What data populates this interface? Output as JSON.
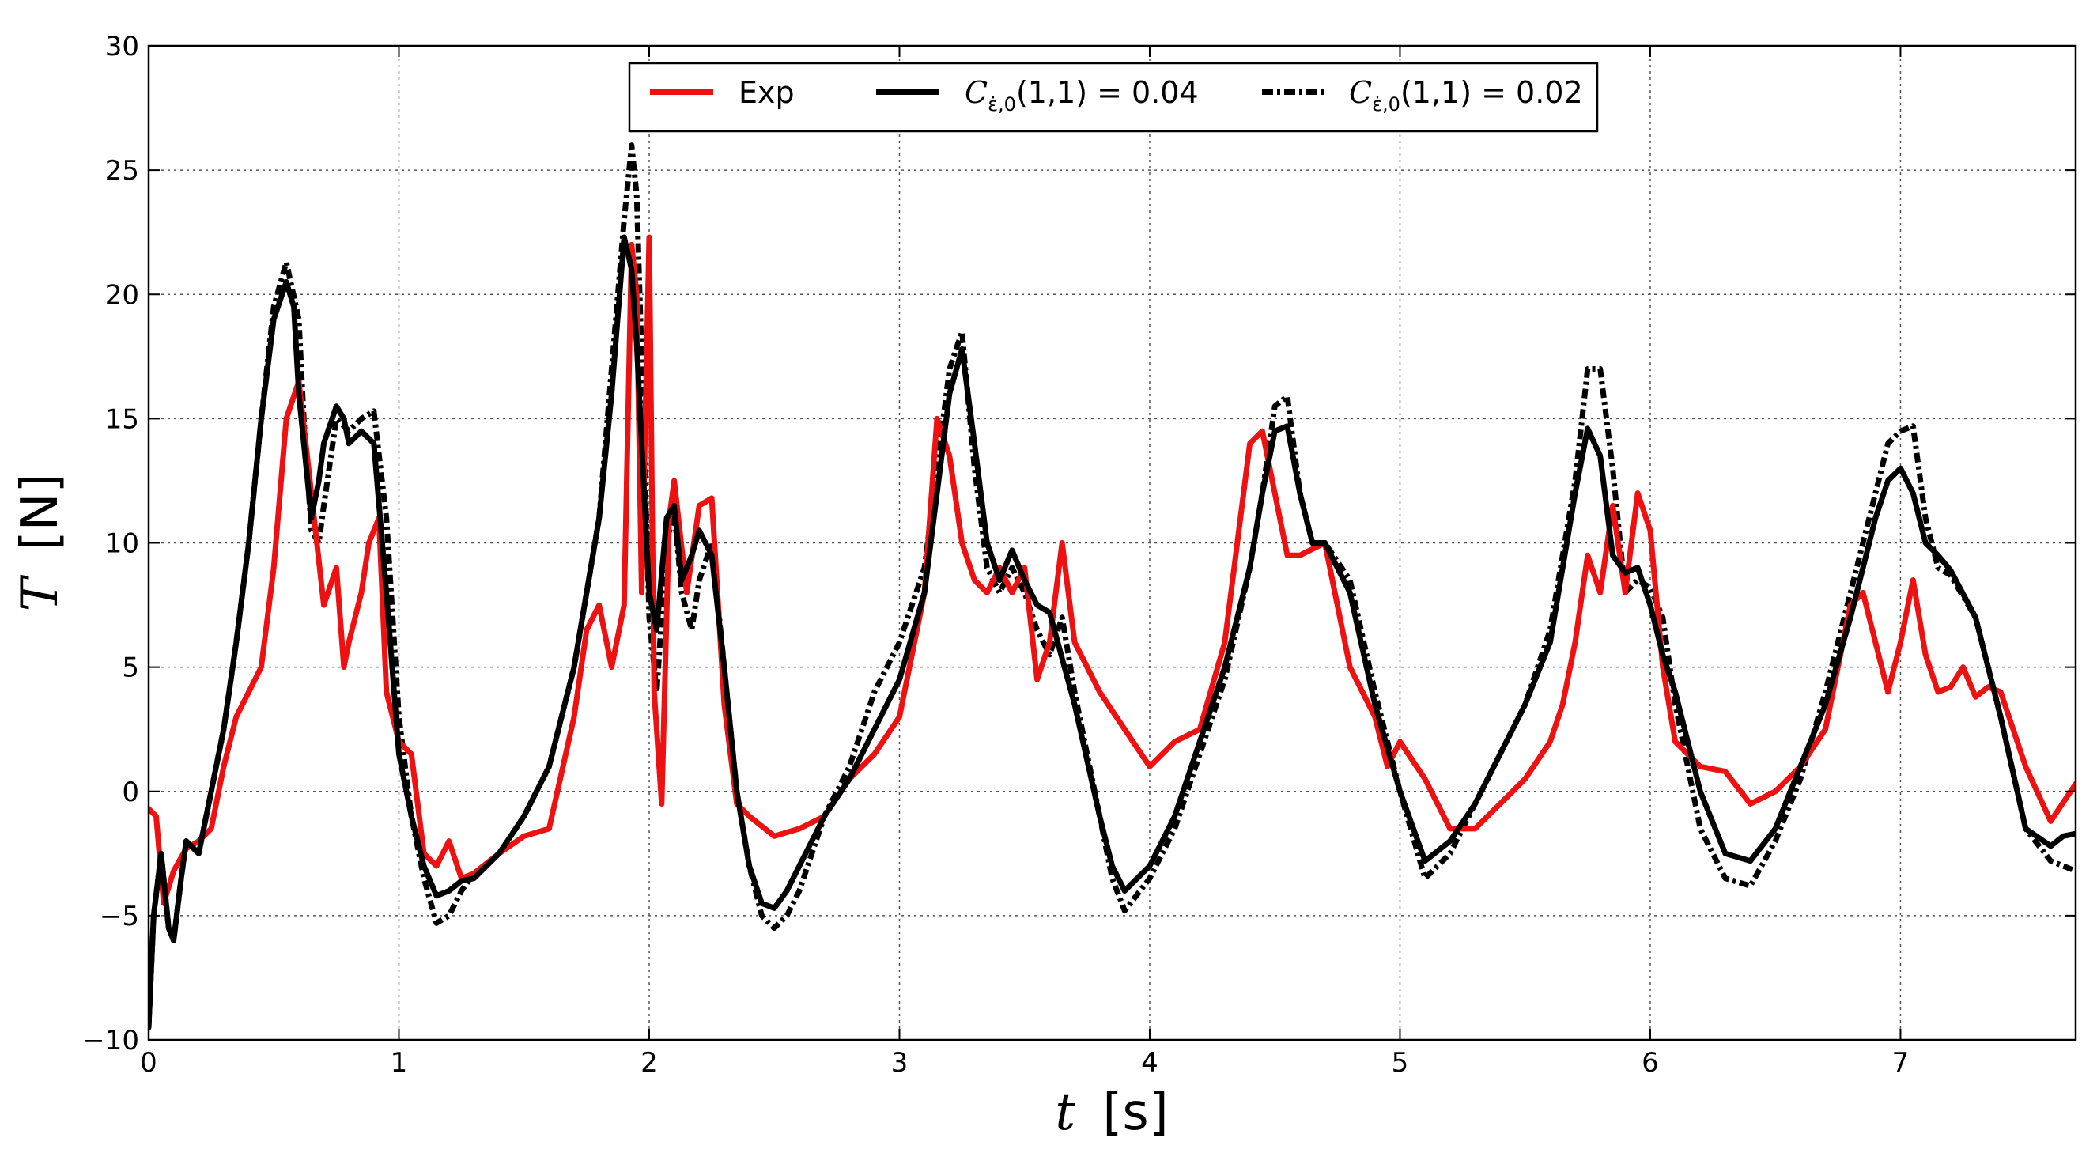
{
  "chart_data": {
    "type": "line",
    "xlabel_var": "t",
    "xlabel_unit": "[s]",
    "ylabel_var": "T",
    "ylabel_unit": "[N]",
    "xlim": [
      0,
      7.7
    ],
    "ylim": [
      -10,
      30
    ],
    "x_ticks": [
      0,
      1,
      2,
      3,
      4,
      5,
      6,
      7
    ],
    "y_ticks": [
      -10,
      -5,
      0,
      5,
      10,
      15,
      20,
      25,
      30
    ],
    "x_tick_labels": [
      "0",
      "1",
      "2",
      "3",
      "4",
      "5",
      "6",
      "7"
    ],
    "y_tick_labels": [
      "−10",
      "−5",
      "0",
      "5",
      "10",
      "15",
      "20",
      "25",
      "30"
    ],
    "grid": true,
    "legend_position": "top-center",
    "series": [
      {
        "name": "Exp",
        "color": "#ee1111",
        "style": "solid",
        "x": [
          0,
          0.03,
          0.06,
          0.1,
          0.15,
          0.2,
          0.25,
          0.3,
          0.35,
          0.4,
          0.45,
          0.5,
          0.55,
          0.6,
          0.65,
          0.7,
          0.75,
          0.78,
          0.8,
          0.85,
          0.88,
          0.92,
          0.95,
          1.0,
          1.05,
          1.1,
          1.15,
          1.2,
          1.25,
          1.3,
          1.4,
          1.5,
          1.6,
          1.7,
          1.75,
          1.8,
          1.85,
          1.9,
          1.93,
          1.95,
          1.97,
          2.0,
          2.02,
          2.05,
          2.08,
          2.1,
          2.15,
          2.2,
          2.25,
          2.3,
          2.35,
          2.4,
          2.5,
          2.6,
          2.7,
          2.8,
          2.9,
          3.0,
          3.1,
          3.15,
          3.2,
          3.25,
          3.3,
          3.35,
          3.4,
          3.45,
          3.5,
          3.55,
          3.6,
          3.65,
          3.7,
          3.8,
          3.9,
          4.0,
          4.1,
          4.2,
          4.3,
          4.4,
          4.45,
          4.5,
          4.55,
          4.6,
          4.7,
          4.75,
          4.8,
          4.85,
          4.9,
          4.95,
          5.0,
          5.1,
          5.2,
          5.3,
          5.4,
          5.5,
          5.6,
          5.65,
          5.7,
          5.75,
          5.8,
          5.85,
          5.9,
          5.95,
          6.0,
          6.05,
          6.1,
          6.2,
          6.3,
          6.4,
          6.5,
          6.6,
          6.7,
          6.8,
          6.85,
          6.9,
          6.95,
          7.0,
          7.05,
          7.1,
          7.15,
          7.2,
          7.25,
          7.3,
          7.35,
          7.4,
          7.5,
          7.6,
          7.7
        ],
        "y": [
          -0.7,
          -1.0,
          -4.5,
          -3.2,
          -2.3,
          -2.0,
          -1.5,
          1.0,
          3.0,
          4.0,
          5.0,
          9.0,
          15.0,
          16.5,
          12.0,
          7.5,
          9.0,
          5.0,
          6.0,
          8.0,
          10.0,
          11.0,
          4.0,
          2.0,
          1.5,
          -2.5,
          -3.0,
          -2.0,
          -3.5,
          -3.3,
          -2.5,
          -1.8,
          -1.5,
          3.0,
          6.5,
          7.5,
          5.0,
          7.5,
          22.0,
          20.0,
          8.0,
          22.3,
          4.0,
          -0.5,
          11.0,
          12.5,
          8.0,
          11.5,
          11.8,
          3.5,
          -0.5,
          -1.0,
          -1.8,
          -1.5,
          -1.0,
          0.5,
          1.5,
          3.0,
          8.0,
          15.0,
          13.5,
          10.0,
          8.5,
          8.0,
          9.0,
          8.0,
          9.0,
          4.5,
          6.0,
          10.0,
          6.0,
          4.0,
          2.5,
          1.0,
          2.0,
          2.5,
          6.0,
          14.0,
          14.5,
          12.0,
          9.5,
          9.5,
          10.0,
          7.5,
          5.0,
          4.0,
          3.0,
          1.0,
          2.0,
          0.5,
          -1.5,
          -1.5,
          -0.5,
          0.5,
          2.0,
          3.5,
          6.0,
          9.5,
          8.0,
          11.5,
          8.0,
          12.0,
          10.5,
          5.0,
          2.0,
          1.0,
          0.8,
          -0.5,
          0.0,
          1.0,
          2.5,
          7.5,
          8.0,
          6.0,
          4.0,
          6.0,
          8.5,
          5.5,
          4.0,
          4.2,
          5.0,
          3.8,
          4.2,
          4.0,
          1.0,
          -1.2,
          0.3
        ]
      },
      {
        "name": "C_{ε̇,0}(1,1)=0.04",
        "color": "#000000",
        "style": "solid",
        "x": [
          0,
          0.02,
          0.05,
          0.08,
          0.1,
          0.13,
          0.15,
          0.18,
          0.2,
          0.25,
          0.3,
          0.35,
          0.4,
          0.45,
          0.5,
          0.55,
          0.58,
          0.6,
          0.65,
          0.68,
          0.7,
          0.75,
          0.78,
          0.8,
          0.85,
          0.9,
          0.95,
          1.0,
          1.05,
          1.1,
          1.15,
          1.2,
          1.25,
          1.3,
          1.4,
          1.5,
          1.6,
          1.7,
          1.8,
          1.85,
          1.9,
          1.93,
          1.95,
          2.0,
          2.03,
          2.07,
          2.1,
          2.13,
          2.17,
          2.2,
          2.25,
          2.3,
          2.35,
          2.4,
          2.45,
          2.5,
          2.55,
          2.6,
          2.7,
          2.8,
          2.9,
          3.0,
          3.1,
          3.15,
          3.2,
          3.25,
          3.3,
          3.35,
          3.4,
          3.45,
          3.5,
          3.55,
          3.6,
          3.7,
          3.8,
          3.85,
          3.9,
          4.0,
          4.1,
          4.2,
          4.3,
          4.4,
          4.45,
          4.5,
          4.55,
          4.6,
          4.65,
          4.7,
          4.8,
          4.9,
          5.0,
          5.1,
          5.2,
          5.3,
          5.4,
          5.5,
          5.6,
          5.65,
          5.7,
          5.75,
          5.8,
          5.85,
          5.9,
          5.95,
          6.0,
          6.05,
          6.1,
          6.2,
          6.3,
          6.4,
          6.5,
          6.6,
          6.7,
          6.8,
          6.9,
          6.95,
          7.0,
          7.05,
          7.1,
          7.15,
          7.2,
          7.3,
          7.4,
          7.5,
          7.6,
          7.65,
          7.7
        ],
        "y": [
          -9.5,
          -5.0,
          -2.5,
          -5.5,
          -6.0,
          -3.5,
          -2.0,
          -2.3,
          -2.5,
          0.0,
          2.5,
          6.0,
          10.0,
          15.0,
          19.0,
          20.5,
          19.5,
          16.0,
          11.0,
          12.5,
          14.0,
          15.5,
          15.0,
          14.0,
          14.5,
          14.0,
          8.0,
          1.5,
          -1.0,
          -3.0,
          -4.2,
          -4.0,
          -3.6,
          -3.5,
          -2.5,
          -1.0,
          1.0,
          5.0,
          11.0,
          16.0,
          22.3,
          21.0,
          18.0,
          8.0,
          6.5,
          11.0,
          11.5,
          8.5,
          9.5,
          10.5,
          9.5,
          5.0,
          0.0,
          -3.0,
          -4.5,
          -4.7,
          -4.0,
          -3.0,
          -1.0,
          0.5,
          2.5,
          4.5,
          8.0,
          12.0,
          16.0,
          17.8,
          14.0,
          10.0,
          8.5,
          9.7,
          8.5,
          7.5,
          7.2,
          3.5,
          -1.0,
          -3.0,
          -4.0,
          -3.0,
          -1.0,
          2.0,
          5.0,
          9.0,
          12.0,
          14.5,
          14.7,
          12.0,
          10.0,
          10.0,
          8.0,
          3.5,
          0.0,
          -2.8,
          -2.0,
          -0.5,
          1.5,
          3.5,
          6.0,
          9.0,
          12.0,
          14.6,
          13.5,
          9.5,
          8.8,
          9.0,
          7.5,
          5.5,
          4.0,
          0.0,
          -2.5,
          -2.8,
          -1.5,
          1.0,
          3.5,
          7.0,
          11.0,
          12.5,
          13.0,
          12.0,
          10.0,
          9.5,
          8.9,
          7.0,
          3.0,
          -1.5,
          -2.2,
          -1.8,
          -1.7
        ]
      },
      {
        "name": "C_{ε̇,0}(1,1)=0.02",
        "color": "#000000",
        "style": "dashdot",
        "x": [
          0,
          0.02,
          0.05,
          0.08,
          0.1,
          0.13,
          0.15,
          0.18,
          0.2,
          0.25,
          0.3,
          0.35,
          0.4,
          0.45,
          0.5,
          0.55,
          0.6,
          0.62,
          0.65,
          0.68,
          0.7,
          0.75,
          0.8,
          0.85,
          0.9,
          0.95,
          1.0,
          1.05,
          1.1,
          1.15,
          1.2,
          1.25,
          1.3,
          1.4,
          1.5,
          1.6,
          1.7,
          1.8,
          1.85,
          1.9,
          1.93,
          1.95,
          1.98,
          2.0,
          2.03,
          2.05,
          2.07,
          2.1,
          2.13,
          2.17,
          2.2,
          2.25,
          2.3,
          2.35,
          2.4,
          2.45,
          2.5,
          2.55,
          2.6,
          2.7,
          2.8,
          2.9,
          3.0,
          3.1,
          3.15,
          3.2,
          3.25,
          3.3,
          3.35,
          3.4,
          3.45,
          3.5,
          3.55,
          3.6,
          3.65,
          3.7,
          3.8,
          3.85,
          3.9,
          4.0,
          4.1,
          4.2,
          4.3,
          4.4,
          4.45,
          4.5,
          4.55,
          4.6,
          4.65,
          4.7,
          4.8,
          4.9,
          5.0,
          5.1,
          5.2,
          5.3,
          5.4,
          5.5,
          5.6,
          5.65,
          5.7,
          5.75,
          5.8,
          5.85,
          5.9,
          5.95,
          6.0,
          6.05,
          6.1,
          6.2,
          6.3,
          6.4,
          6.5,
          6.6,
          6.7,
          6.8,
          6.9,
          6.95,
          7.0,
          7.05,
          7.1,
          7.15,
          7.2,
          7.3,
          7.4,
          7.5,
          7.6,
          7.65,
          7.7
        ],
        "y": [
          -9.5,
          -5.0,
          -2.5,
          -5.5,
          -6.0,
          -3.5,
          -2.0,
          -2.3,
          -2.5,
          0.0,
          2.5,
          6.0,
          10.0,
          15.0,
          19.5,
          21.3,
          19.0,
          15.0,
          10.5,
          10.0,
          11.5,
          15.0,
          14.5,
          15.0,
          15.3,
          11.0,
          3.0,
          -1.0,
          -3.5,
          -5.3,
          -5.0,
          -4.0,
          -3.3,
          -2.5,
          -1.0,
          1.0,
          5.0,
          11.0,
          17.0,
          23.0,
          26.0,
          24.0,
          14.0,
          7.0,
          4.0,
          7.0,
          10.0,
          11.3,
          8.0,
          6.5,
          8.5,
          10.0,
          5.0,
          0.0,
          -3.0,
          -5.0,
          -5.5,
          -5.0,
          -4.0,
          -1.0,
          1.0,
          4.0,
          6.0,
          9.0,
          13.0,
          17.0,
          18.5,
          13.0,
          9.0,
          8.0,
          9.0,
          8.0,
          6.5,
          5.5,
          7.0,
          4.0,
          -1.0,
          -3.5,
          -4.8,
          -3.5,
          -1.5,
          1.5,
          4.5,
          9.0,
          12.0,
          15.5,
          15.9,
          12.0,
          10.0,
          10.0,
          8.5,
          4.0,
          0.0,
          -3.5,
          -2.5,
          -0.5,
          1.5,
          3.5,
          6.5,
          9.5,
          12.5,
          17.0,
          17.0,
          13.0,
          8.0,
          8.5,
          8.2,
          7.0,
          3.5,
          -1.5,
          -3.5,
          -3.8,
          -2.0,
          0.5,
          4.0,
          8.0,
          12.0,
          14.0,
          14.5,
          14.7,
          11.0,
          9.0,
          8.7,
          7.0,
          3.0,
          -1.5,
          -2.8,
          -3.0,
          -3.2
        ]
      }
    ]
  }
}
